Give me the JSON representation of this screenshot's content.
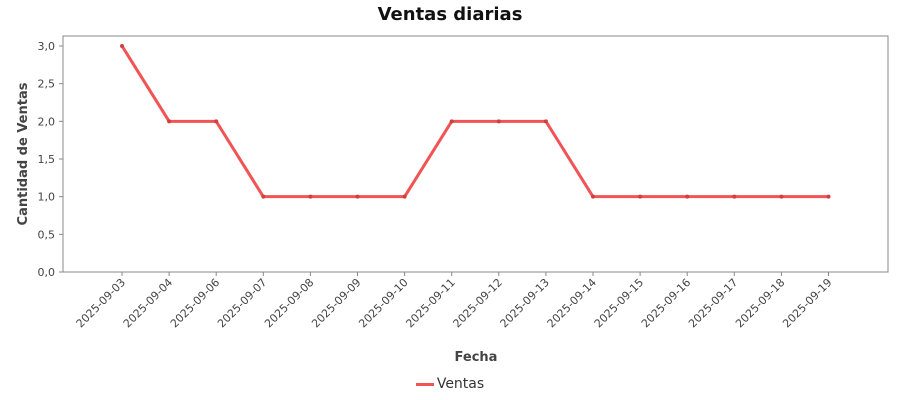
{
  "chart_data": {
    "type": "line",
    "title": "Ventas diarias",
    "xlabel": "Fecha",
    "ylabel": "Cantidad de Ventas",
    "categories": [
      "2025-09-03",
      "2025-09-04",
      "2025-09-06",
      "2025-09-07",
      "2025-09-08",
      "2025-09-09",
      "2025-09-10",
      "2025-09-11",
      "2025-09-12",
      "2025-09-13",
      "2025-09-14",
      "2025-09-15",
      "2025-09-16",
      "2025-09-17",
      "2025-09-18",
      "2025-09-19"
    ],
    "series": [
      {
        "name": "Ventas",
        "color": "#f05454",
        "values": [
          3,
          2,
          2,
          1,
          1,
          1,
          1,
          2,
          2,
          2,
          1,
          1,
          1,
          1,
          1,
          1
        ]
      }
    ],
    "yticks": [
      "0,0",
      "0,5",
      "1,0",
      "1,5",
      "2,0",
      "2,5",
      "3,0"
    ],
    "ylim": [
      0,
      3
    ],
    "grid": false,
    "legend_position": "bottom"
  }
}
